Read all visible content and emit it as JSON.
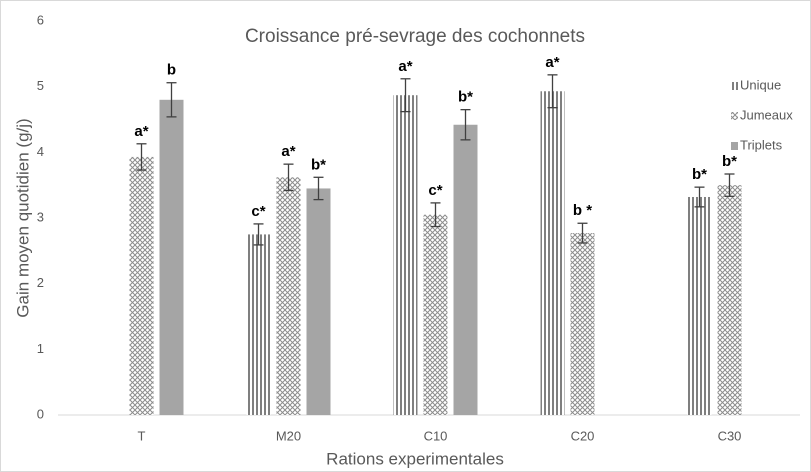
{
  "chart_data": {
    "type": "bar",
    "title": "Croissance pré-sevrage des cochonnets",
    "x_label": "Rations experimentales",
    "y_label": "Gain moyen quotidien (g/j)",
    "categories": [
      "T",
      "M20",
      "C10",
      "C20",
      "C30"
    ],
    "series": [
      {
        "name": "Unique",
        "color": "#7f7f7f",
        "pattern": "vertical-stripes",
        "values": [
          null,
          2.75,
          4.87,
          4.93,
          3.32
        ],
        "errors": [
          null,
          0.16,
          0.25,
          0.25,
          0.15
        ],
        "annotations": [
          null,
          "c*",
          "a*",
          "a*",
          "b*"
        ]
      },
      {
        "name": "Jumeaux",
        "color": "#8c8c8c",
        "pattern": "crosshatch",
        "values": [
          3.93,
          3.62,
          3.05,
          2.77,
          3.5
        ],
        "errors": [
          0.2,
          0.2,
          0.18,
          0.15,
          0.17
        ],
        "annotations": [
          "a*",
          "a*",
          "c*",
          "b *",
          "b*"
        ]
      },
      {
        "name": "Triplets",
        "color": "#a5a5a5",
        "pattern": "solid",
        "values": [
          4.8,
          3.45,
          4.42,
          null,
          null
        ],
        "errors": [
          0.26,
          0.17,
          0.23,
          null,
          null
        ],
        "annotations": [
          "b",
          "b*",
          "b*",
          null,
          null
        ]
      }
    ],
    "ylim": [
      0,
      6
    ],
    "yticks": [
      0,
      1,
      2,
      3,
      4,
      5,
      6
    ],
    "grid": false,
    "legend": "right"
  }
}
